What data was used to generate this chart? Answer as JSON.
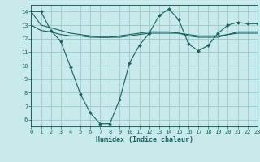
{
  "xlabel": "Humidex (Indice chaleur)",
  "bg_color": "#c8eaea",
  "grid_color": "#a0c8c8",
  "line_color": "#1a6060",
  "xlim": [
    0,
    23
  ],
  "ylim": [
    5.5,
    14.5
  ],
  "xticks": [
    0,
    1,
    2,
    3,
    4,
    5,
    6,
    7,
    8,
    9,
    10,
    11,
    12,
    13,
    14,
    15,
    16,
    17,
    18,
    19,
    20,
    21,
    22,
    23
  ],
  "yticks": [
    6,
    7,
    8,
    9,
    10,
    11,
    12,
    13,
    14
  ],
  "series1": [
    14,
    14,
    12.6,
    11.8,
    9.9,
    7.9,
    6.5,
    5.7,
    5.7,
    7.5,
    10.2,
    11.5,
    12.4,
    13.7,
    14.2,
    13.4,
    11.6,
    11.1,
    11.5,
    12.4,
    13.0,
    13.2,
    13.1,
    13.1
  ],
  "series2": [
    13.0,
    12.6,
    12.5,
    12.3,
    12.2,
    12.2,
    12.1,
    12.1,
    12.1,
    12.1,
    12.2,
    12.3,
    12.4,
    12.4,
    12.4,
    12.4,
    12.3,
    12.2,
    12.2,
    12.2,
    12.3,
    12.4,
    12.4,
    12.4
  ],
  "series3": [
    14.0,
    13.0,
    12.8,
    12.6,
    12.4,
    12.3,
    12.2,
    12.1,
    12.1,
    12.2,
    12.3,
    12.4,
    12.5,
    12.5,
    12.5,
    12.4,
    12.2,
    12.1,
    12.1,
    12.1,
    12.3,
    12.5,
    12.5,
    12.5
  ],
  "tick_fontsize": 5,
  "xlabel_fontsize": 6
}
